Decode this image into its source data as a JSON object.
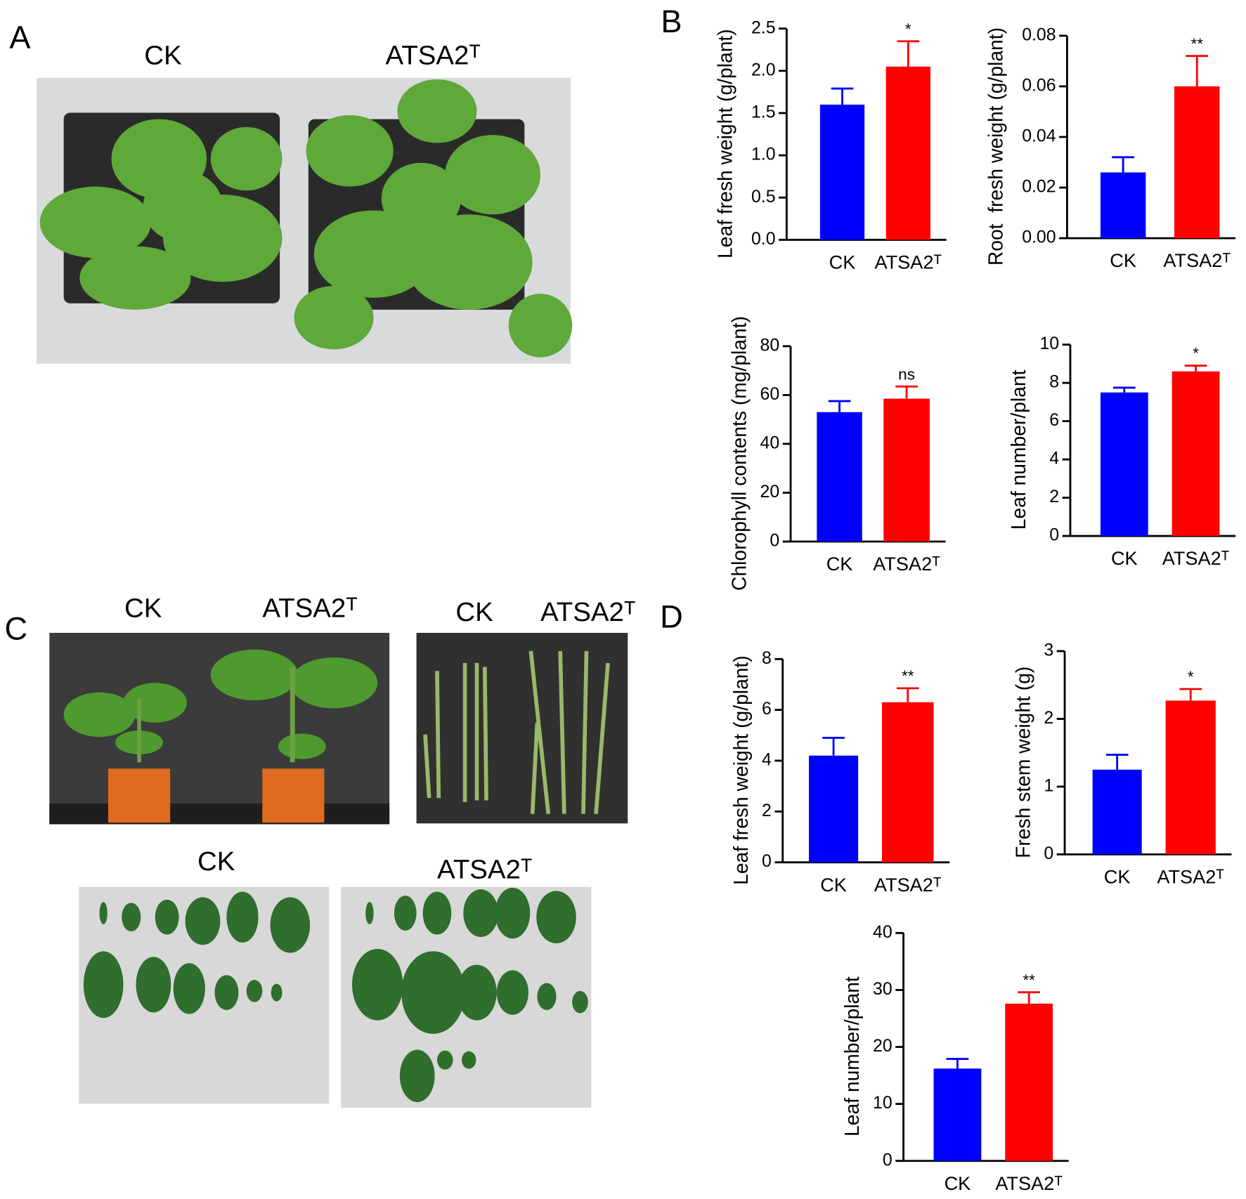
{
  "figure": {
    "panel_labels": [
      "A",
      "B",
      "C",
      "D"
    ],
    "photo_labels": {
      "A": [
        "CK",
        "ATSA2ᵀ"
      ],
      "C_plants": [
        "CK",
        "ATSA2ᵀ"
      ],
      "C_stems": [
        "CK",
        "ATSA2ᵀ"
      ],
      "C_leaves": [
        "CK",
        "ATSA2ᵀ"
      ]
    }
  },
  "chart_data": [
    {
      "type": "bar",
      "y_label": "Leaf fresh weight (g/plant)",
      "categories": [
        "CK",
        "ATSA2ᵀ"
      ],
      "colors": [
        "#0000ff",
        "#ff0000"
      ],
      "values": [
        1.6,
        2.05
      ],
      "errors": [
        0.19,
        0.3
      ],
      "annotation": "*",
      "ylim": [
        0,
        2.5
      ],
      "yticks": [
        {
          "value": 0,
          "label": "0.0"
        },
        0.5,
        {
          "value": 1,
          "label": "1.0"
        },
        1.5,
        {
          "value": 2,
          "label": "2.0"
        },
        2.5
      ]
    },
    {
      "type": "bar",
      "y_label": "Root  fresh weight (g/plant)",
      "categories": [
        "CK",
        "ATSA2ᵀ"
      ],
      "colors": [
        "#0000ff",
        "#ff0000"
      ],
      "values": [
        0.026,
        0.06
      ],
      "errors": [
        0.006,
        0.012
      ],
      "annotation": "**",
      "ylim": [
        0,
        0.08
      ],
      "yticks": [
        {
          "value": 0,
          "label": "0.00"
        },
        0.02,
        0.04,
        0.06,
        0.08
      ]
    },
    {
      "type": "bar",
      "y_label": "Chlorophyll contents (mg/plant)",
      "categories": [
        "CK",
        "ATSA2ᵀ"
      ],
      "colors": [
        "#0000ff",
        "#ff0000"
      ],
      "values": [
        53,
        58.5
      ],
      "errors": [
        4.5,
        5
      ],
      "annotation": "ns",
      "ylim": [
        0,
        80
      ],
      "yticks": [
        0,
        20,
        40,
        60,
        80
      ]
    },
    {
      "type": "bar",
      "y_label": "Leaf number/plant",
      "categories": [
        "CK",
        "ATSA2ᵀ"
      ],
      "colors": [
        "#0000ff",
        "#ff0000"
      ],
      "values": [
        7.5,
        8.6
      ],
      "errors": [
        0.25,
        0.3
      ],
      "annotation": "*",
      "ylim": [
        0,
        10
      ],
      "yticks": [
        0,
        2,
        4,
        6,
        8,
        10
      ]
    },
    {
      "type": "bar",
      "y_label": "Leaf fresh weight (g/plant)",
      "categories": [
        "CK",
        "ATSA2ᵀ"
      ],
      "colors": [
        "#0000ff",
        "#ff0000"
      ],
      "values": [
        4.2,
        6.3
      ],
      "errors": [
        0.7,
        0.55
      ],
      "annotation": "**",
      "ylim": [
        0,
        8
      ],
      "yticks": [
        0,
        2,
        4,
        6,
        8
      ]
    },
    {
      "type": "bar",
      "y_label": "Fresh stem weight (g)",
      "categories": [
        "CK",
        "ATSA2ᵀ"
      ],
      "colors": [
        "#0000ff",
        "#ff0000"
      ],
      "values": [
        1.25,
        2.27
      ],
      "errors": [
        0.22,
        0.17
      ],
      "annotation": "*",
      "ylim": [
        0,
        3
      ],
      "yticks": [
        0,
        1,
        2,
        3
      ]
    },
    {
      "type": "bar",
      "y_label": "Leaf number/plant",
      "categories": [
        "CK",
        "ATSA2ᵀ"
      ],
      "colors": [
        "#0000ff",
        "#ff0000"
      ],
      "values": [
        16.2,
        27.6
      ],
      "errors": [
        1.7,
        2.0
      ],
      "annotation": "**",
      "ylim": [
        0,
        40
      ],
      "yticks": [
        0,
        10,
        20,
        30,
        40
      ]
    }
  ]
}
